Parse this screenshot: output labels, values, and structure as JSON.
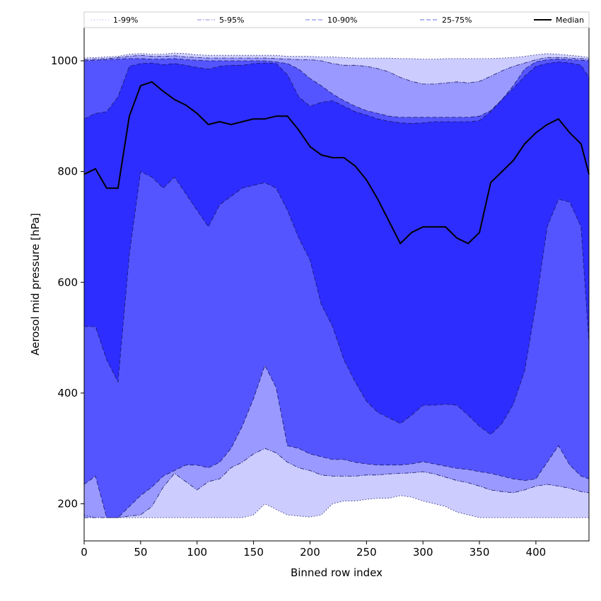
{
  "chart_data": {
    "type": "area",
    "xlabel": "Binned row index",
    "ylabel": "Aerosol mid pressure [hPa]",
    "xlim": [
      0,
      447
    ],
    "ylim": [
      133,
      1060
    ],
    "xticks": [
      0,
      50,
      100,
      150,
      200,
      250,
      300,
      350,
      400
    ],
    "yticks": [
      200,
      400,
      600,
      800,
      1000
    ],
    "legend_position": "top",
    "grid": false,
    "x": [
      0,
      10,
      20,
      30,
      40,
      50,
      60,
      70,
      80,
      90,
      100,
      110,
      120,
      130,
      140,
      150,
      160,
      170,
      180,
      190,
      200,
      210,
      220,
      230,
      240,
      250,
      260,
      270,
      280,
      290,
      300,
      310,
      320,
      330,
      340,
      350,
      360,
      370,
      380,
      390,
      400,
      410,
      420,
      430,
      440,
      447
    ],
    "bands": [
      {
        "name": "1-99%",
        "style": "dotted",
        "fill": "#ccccff",
        "line": "#bbbbee",
        "lower": [
          180,
          175,
          175,
          175,
          175,
          175,
          175,
          175,
          175,
          175,
          175,
          175,
          175,
          175,
          175,
          180,
          200,
          190,
          180,
          178,
          176,
          180,
          200,
          205,
          205,
          208,
          210,
          210,
          215,
          212,
          205,
          200,
          195,
          185,
          180,
          175,
          175,
          175,
          175,
          175,
          175,
          175,
          175,
          175,
          175,
          175
        ],
        "upper": [
          1005,
          1006,
          1007,
          1008,
          1012,
          1013,
          1012,
          1012,
          1014,
          1013,
          1011,
          1010,
          1010,
          1010,
          1010,
          1010,
          1010,
          1010,
          1008,
          1008,
          1008,
          1007,
          1007,
          1006,
          1005,
          1005,
          1005,
          1005,
          1004,
          1004,
          1003,
          1003,
          1004,
          1004,
          1004,
          1004,
          1004,
          1005,
          1006,
          1008,
          1011,
          1013,
          1012,
          1010,
          1008,
          1006
        ]
      },
      {
        "name": "5-95%",
        "style": "dash-dot",
        "fill": "#9999ff",
        "line": "#8888dd",
        "lower": [
          175,
          175,
          175,
          175,
          178,
          180,
          195,
          230,
          255,
          240,
          225,
          240,
          245,
          265,
          275,
          290,
          300,
          292,
          275,
          265,
          260,
          252,
          250,
          250,
          250,
          252,
          252,
          254,
          255,
          256,
          258,
          254,
          248,
          242,
          238,
          232,
          225,
          222,
          220,
          225,
          232,
          235,
          232,
          228,
          222,
          220
        ],
        "upper": [
          1002,
          1003,
          1004,
          1006,
          1008,
          1010,
          1008,
          1008,
          1009,
          1007,
          1006,
          1005,
          1005,
          1005,
          1005,
          1005,
          1005,
          1004,
          1003,
          1002,
          1002,
          1000,
          995,
          992,
          992,
          990,
          986,
          980,
          970,
          963,
          958,
          958,
          960,
          962,
          960,
          963,
          972,
          982,
          990,
          996,
          1002,
          1006,
          1006,
          1005,
          1004,
          1003
        ]
      },
      {
        "name": "10-90%",
        "style": "dashed",
        "fill": "#5555ff",
        "line": "#7777ee",
        "lower": [
          235,
          250,
          175,
          175,
          195,
          215,
          230,
          250,
          260,
          270,
          270,
          265,
          275,
          300,
          340,
          390,
          450,
          410,
          305,
          300,
          290,
          285,
          280,
          280,
          275,
          272,
          270,
          270,
          270,
          272,
          276,
          272,
          268,
          264,
          262,
          258,
          255,
          250,
          245,
          242,
          245,
          275,
          305,
          270,
          250,
          245
        ],
        "upper": [
          1000,
          1001,
          1002,
          1003,
          1004,
          1004,
          1003,
          1003,
          1004,
          1002,
          1001,
          1000,
          1000,
          1000,
          1000,
          1000,
          1000,
          998,
          995,
          985,
          968,
          955,
          940,
          928,
          918,
          910,
          905,
          900,
          898,
          898,
          898,
          898,
          898,
          898,
          898,
          900,
          910,
          930,
          955,
          985,
          998,
          1002,
          1003,
          1002,
          1001,
          1000
        ]
      },
      {
        "name": "25-75%",
        "style": "dashed",
        "fill": "#2d2dff",
        "line": "#6a6aee",
        "lower": [
          520,
          520,
          460,
          420,
          650,
          800,
          790,
          770,
          790,
          760,
          730,
          700,
          740,
          755,
          770,
          775,
          780,
          770,
          730,
          680,
          640,
          560,
          520,
          460,
          420,
          385,
          365,
          355,
          345,
          360,
          378,
          378,
          380,
          378,
          360,
          340,
          325,
          345,
          380,
          440,
          560,
          700,
          750,
          745,
          700,
          490
        ],
        "upper": [
          895,
          905,
          908,
          935,
          990,
          995,
          996,
          993,
          995,
          992,
          988,
          985,
          990,
          992,
          992,
          995,
          996,
          995,
          975,
          935,
          918,
          925,
          928,
          918,
          908,
          902,
          895,
          891,
          888,
          887,
          888,
          890,
          890,
          890,
          890,
          892,
          908,
          930,
          950,
          972,
          990,
          995,
          998,
          996,
          992,
          970
        ]
      }
    ],
    "series": [
      {
        "name": "Median",
        "style": "solid",
        "color": "#000000",
        "values": [
          795,
          805,
          770,
          770,
          900,
          955,
          962,
          945,
          930,
          920,
          905,
          885,
          890,
          885,
          890,
          895,
          895,
          900,
          900,
          875,
          845,
          830,
          825,
          825,
          810,
          785,
          750,
          710,
          670,
          690,
          700,
          700,
          700,
          680,
          670,
          690,
          780,
          800,
          820,
          850,
          870,
          885,
          895,
          870,
          850,
          795
        ]
      }
    ]
  }
}
